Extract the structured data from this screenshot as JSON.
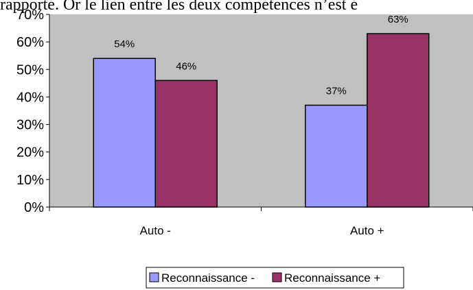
{
  "header_text": "rapporté. Or le lien entre les deux compétences n’est é",
  "colors": {
    "plot_background": "#c0c0c0",
    "reconnaissance_minus": "#9999ff",
    "reconnaissance_plus": "#993366"
  },
  "chart_data": {
    "type": "bar",
    "categories": [
      "Auto -",
      "Auto +"
    ],
    "series": [
      {
        "name": "Reconnaissance -",
        "values": [
          54,
          37
        ],
        "labels": [
          "54%",
          "37%"
        ]
      },
      {
        "name": "Reconnaissance +",
        "values": [
          46,
          63
        ],
        "labels": [
          "46%",
          "63%"
        ]
      }
    ],
    "y_ticks": [
      "0%",
      "10%",
      "20%",
      "30%",
      "40%",
      "50%",
      "60%",
      "70%"
    ],
    "ylim": [
      0,
      70
    ],
    "unit": "%",
    "grid": false,
    "legend_position": "bottom"
  }
}
